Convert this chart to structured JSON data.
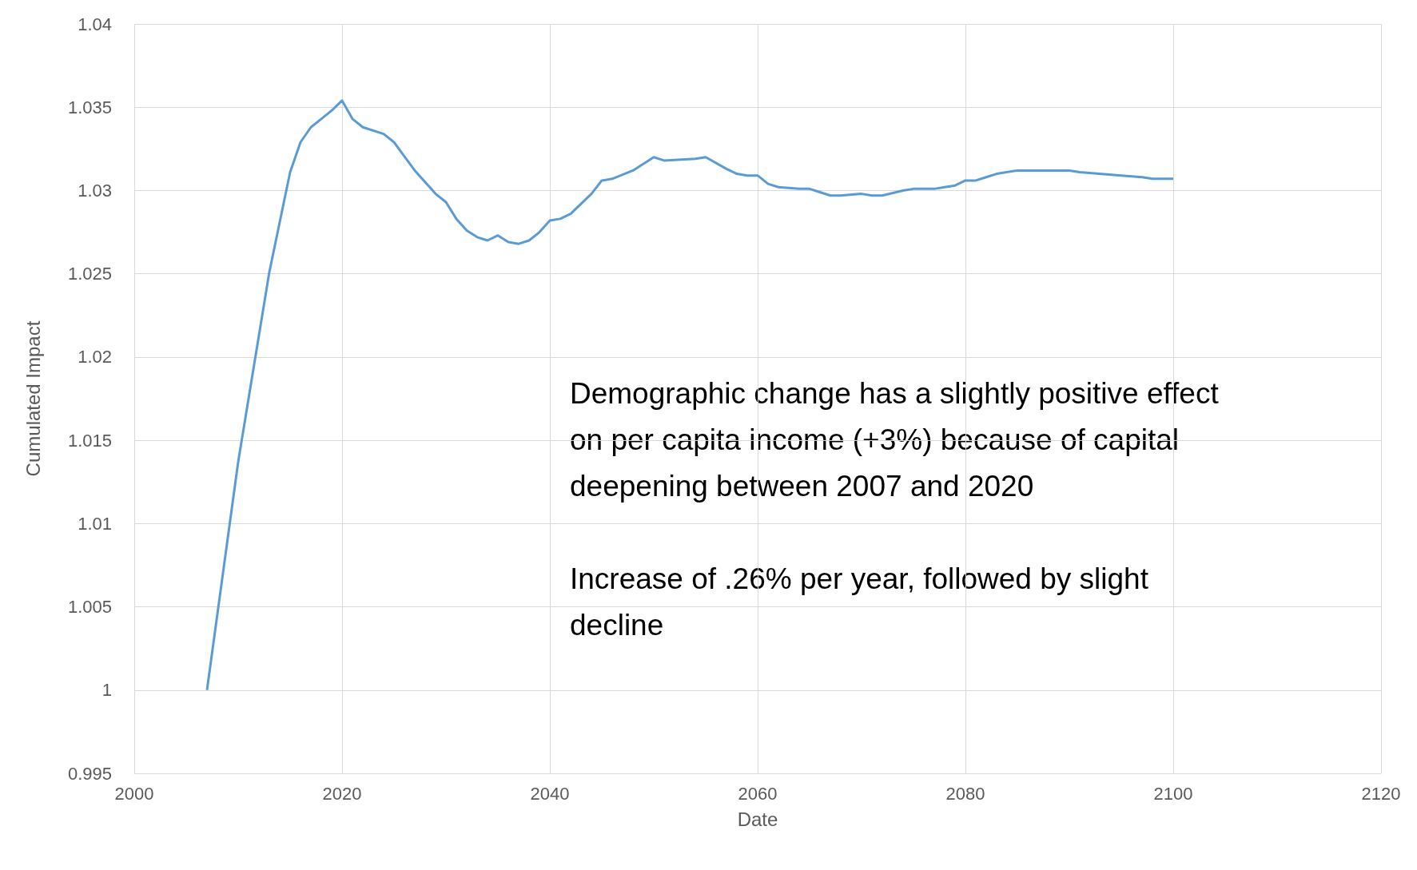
{
  "chart_data": {
    "type": "line",
    "xlabel": "Date",
    "ylabel": "Cumulated Impact",
    "x": [
      2007,
      2010,
      2013,
      2015,
      2016,
      2017,
      2018,
      2019,
      2020,
      2021,
      2022,
      2024,
      2025,
      2027,
      2029,
      2030,
      2031,
      2032,
      2033,
      2034,
      2035,
      2036,
      2037,
      2038,
      2039,
      2040,
      2041,
      2042,
      2043,
      2044,
      2045,
      2046,
      2048,
      2050,
      2051,
      2054,
      2055,
      2057,
      2058,
      2059,
      2060,
      2061,
      2062,
      2064,
      2065,
      2067,
      2068,
      2070,
      2071,
      2072,
      2074,
      2075,
      2077,
      2078,
      2079,
      2080,
      2081,
      2082,
      2083,
      2085,
      2087,
      2088,
      2089,
      2090,
      2091,
      2095,
      2097,
      2098,
      2100
    ],
    "series": [
      {
        "color": "#5b9bd5",
        "values": [
          1.0,
          1.0137,
          1.0251,
          1.0311,
          1.0329,
          1.0338,
          1.0343,
          1.0348,
          1.0354,
          1.0343,
          1.0338,
          1.0334,
          1.0329,
          1.0312,
          1.0298,
          1.0293,
          1.0283,
          1.0276,
          1.0272,
          1.027,
          1.0273,
          1.0269,
          1.0268,
          1.027,
          1.0275,
          1.0282,
          1.0283,
          1.0286,
          1.0292,
          1.0298,
          1.0306,
          1.0307,
          1.0312,
          1.032,
          1.0318,
          1.0319,
          1.032,
          1.0313,
          1.031,
          1.0309,
          1.0309,
          1.0304,
          1.0302,
          1.0301,
          1.0301,
          1.0297,
          1.0297,
          1.0298,
          1.0297,
          1.0297,
          1.03,
          1.0301,
          1.0301,
          1.0302,
          1.0303,
          1.0306,
          1.0306,
          1.0308,
          1.031,
          1.0312,
          1.0312,
          1.0312,
          1.0312,
          1.0312,
          1.0311,
          1.0309,
          1.0308,
          1.0307,
          1.0307
        ]
      }
    ],
    "xlim": [
      2000,
      2120
    ],
    "xticks": [
      2000,
      2020,
      2040,
      2060,
      2080,
      2100,
      2120
    ],
    "ylim": [
      0.995,
      1.04
    ],
    "yticks": [
      0.995,
      1,
      1.005,
      1.01,
      1.015,
      1.02,
      1.025,
      1.03,
      1.035,
      1.04
    ],
    "grid": true,
    "marker": "none",
    "line_style": "solid",
    "annotations": [
      "Demographic change has a slightly positive effect on per capita income (+3%) because of capital deepening between 2007 and 2020",
      "Increase of .26% per year, followed by slight decline"
    ]
  }
}
